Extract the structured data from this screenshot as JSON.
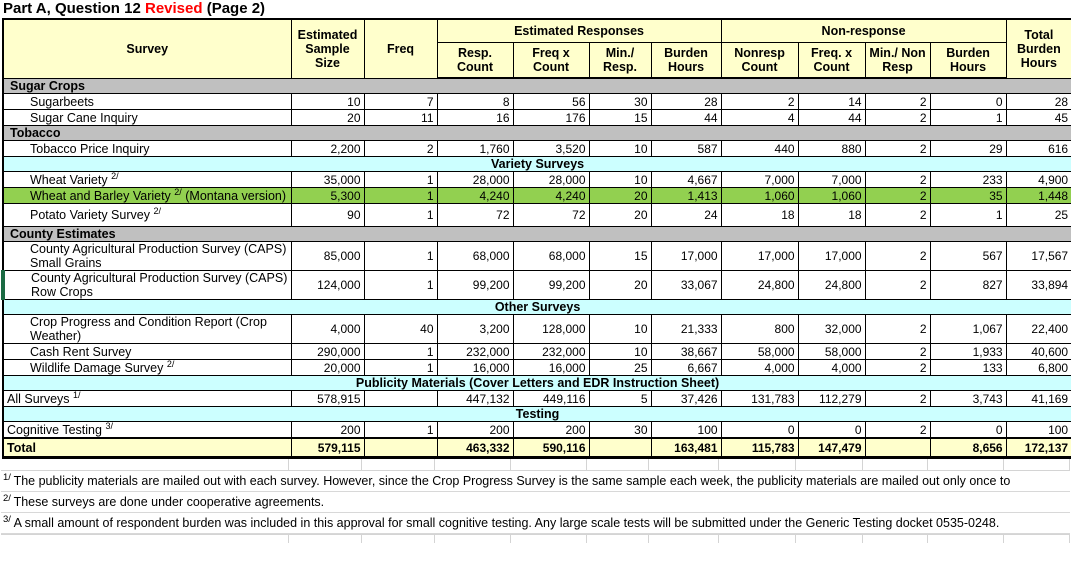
{
  "title": {
    "prefix": "Part A, Question 12 ",
    "revised": "Revised",
    "suffix": " (Page 2)"
  },
  "colors": {
    "header_bg": "#FFFFCC",
    "section_gray": "#C0C0C0",
    "section_cyan": "#CCFFFF",
    "highlight_green": "#92D050",
    "total_bg": "#FFFFCC",
    "revised_red": "#FF0000",
    "edge_marker_green": "#1B6B43"
  },
  "table": {
    "header": {
      "survey": "Survey",
      "sample_size": "Estimated\nSample\nSize",
      "freq": "Freq",
      "est_responses": "Estimated Responses",
      "resp_count": "Resp.\nCount",
      "freq_x_count": "Freq x\nCount",
      "min_resp": "Min./ Resp.",
      "burden_hours": "Burden\nHours",
      "non_response": "Non-response",
      "nonresp_count": "Nonresp\nCount",
      "freq_x_count2": "Freq. x\nCount",
      "min_nonresp": "Min./ Non\nResp",
      "burden_hours2": "Burden\nHours",
      "total_burden": "Total\nBurden\nHours"
    },
    "rows": [
      {
        "t": "sec-gray",
        "label": "Sugar Crops"
      },
      {
        "t": "data",
        "indent": 1,
        "label": "Sugarbeets",
        "v": [
          "10",
          "7",
          "8",
          "56",
          "30",
          "28",
          "2",
          "14",
          "2",
          "0",
          "28"
        ]
      },
      {
        "t": "data",
        "indent": 1,
        "label": "Sugar Cane Inquiry",
        "v": [
          "20",
          "11",
          "16",
          "176",
          "15",
          "44",
          "4",
          "44",
          "2",
          "1",
          "45"
        ]
      },
      {
        "t": "sec-gray",
        "label": "Tobacco"
      },
      {
        "t": "data",
        "indent": 1,
        "label": "Tobacco Price Inquiry",
        "v": [
          "2,200",
          "2",
          "1,760",
          "3,520",
          "10",
          "587",
          "440",
          "880",
          "2",
          "29",
          "616"
        ]
      },
      {
        "t": "sec-cyan",
        "label": "Variety Surveys"
      },
      {
        "t": "data",
        "indent": 1,
        "label": "Wheat Variety ",
        "sup": "2/",
        "v": [
          "35,000",
          "1",
          "28,000",
          "28,000",
          "10",
          "4,667",
          "7,000",
          "7,000",
          "2",
          "233",
          "4,900"
        ]
      },
      {
        "t": "data",
        "indent": 1,
        "green": 1,
        "label": "Wheat and Barley Variety ",
        "sup": "2/",
        "after": " (Montana version)",
        "v": [
          "5,300",
          "1",
          "4,240",
          "4,240",
          "20",
          "1,413",
          "1,060",
          "1,060",
          "2",
          "35",
          "1,448"
        ]
      },
      {
        "t": "data",
        "indent": 1,
        "tall": 1,
        "label": "Potato Variety Survey  ",
        "sup": "2/",
        "v": [
          "90",
          "1",
          "72",
          "72",
          "20",
          "24",
          "18",
          "18",
          "2",
          "1",
          "25"
        ]
      },
      {
        "t": "sec-gray",
        "label": "County Estimates"
      },
      {
        "t": "data",
        "indent": 1,
        "label": "County Agricultural Production Survey (CAPS) Small Grains",
        "v": [
          "85,000",
          "1",
          "68,000",
          "68,000",
          "15",
          "17,000",
          "17,000",
          "17,000",
          "2",
          "567",
          "17,567"
        ]
      },
      {
        "t": "data",
        "indent": 1,
        "edge": 1,
        "label": "County Agricultural Production Survey (CAPS) Row Crops",
        "v": [
          "124,000",
          "1",
          "99,200",
          "99,200",
          "20",
          "33,067",
          "24,800",
          "24,800",
          "2",
          "827",
          "33,894"
        ]
      },
      {
        "t": "sec-cyan",
        "label": "Other Surveys"
      },
      {
        "t": "data",
        "indent": 1,
        "label": "Crop Progress and Condition Report (Crop Weather)",
        "v": [
          "4,000",
          "40",
          "3,200",
          "128,000",
          "10",
          "21,333",
          "800",
          "32,000",
          "2",
          "1,067",
          "22,400"
        ]
      },
      {
        "t": "data",
        "indent": 1,
        "label": "Cash Rent Survey",
        "v": [
          "290,000",
          "1",
          "232,000",
          "232,000",
          "10",
          "38,667",
          "58,000",
          "58,000",
          "2",
          "1,933",
          "40,600"
        ]
      },
      {
        "t": "data",
        "indent": 1,
        "label": "Wildlife Damage Survey ",
        "sup": "2/",
        "v": [
          "20,000",
          "1",
          "16,000",
          "16,000",
          "25",
          "6,667",
          "4,000",
          "4,000",
          "2",
          "133",
          "6,800"
        ]
      },
      {
        "t": "sec-cyan",
        "label": "Publicity Materials (Cover Letters and EDR Instruction Sheet)"
      },
      {
        "t": "data",
        "label": "All Surveys ",
        "sup": "1/",
        "v": [
          "578,915",
          "",
          "447,132",
          "449,116",
          "5",
          "37,426",
          "131,783",
          "112,279",
          "2",
          "3,743",
          "41,169"
        ]
      },
      {
        "t": "sec-cyan",
        "label": "Testing"
      },
      {
        "t": "data",
        "label": "Cognitive Testing ",
        "sup": "3/",
        "v": [
          "200",
          "1",
          "200",
          "200",
          "30",
          "100",
          "0",
          "0",
          "2",
          "0",
          "100"
        ]
      },
      {
        "t": "total",
        "label": "Total",
        "v": [
          "579,115",
          "",
          "463,332",
          "590,116",
          "",
          "163,481",
          "115,783",
          "147,479",
          "",
          "8,656",
          "172,137"
        ]
      }
    ]
  },
  "footnotes": [
    {
      "marker": "1/",
      "text": "The publicity materials are mailed out with each survey.  However, since the Crop Progress Survey is the same sample each week, the publicity materials are mailed out only once to"
    },
    {
      "marker": "2/",
      "text": "These surveys are done under cooperative agreements."
    },
    {
      "marker": "3/",
      "text": "A small amount of respondent burden was included in this approval for small cognitive testing.  Any large scale tests will be submitted under the Generic Testing docket 0535-0248."
    }
  ]
}
